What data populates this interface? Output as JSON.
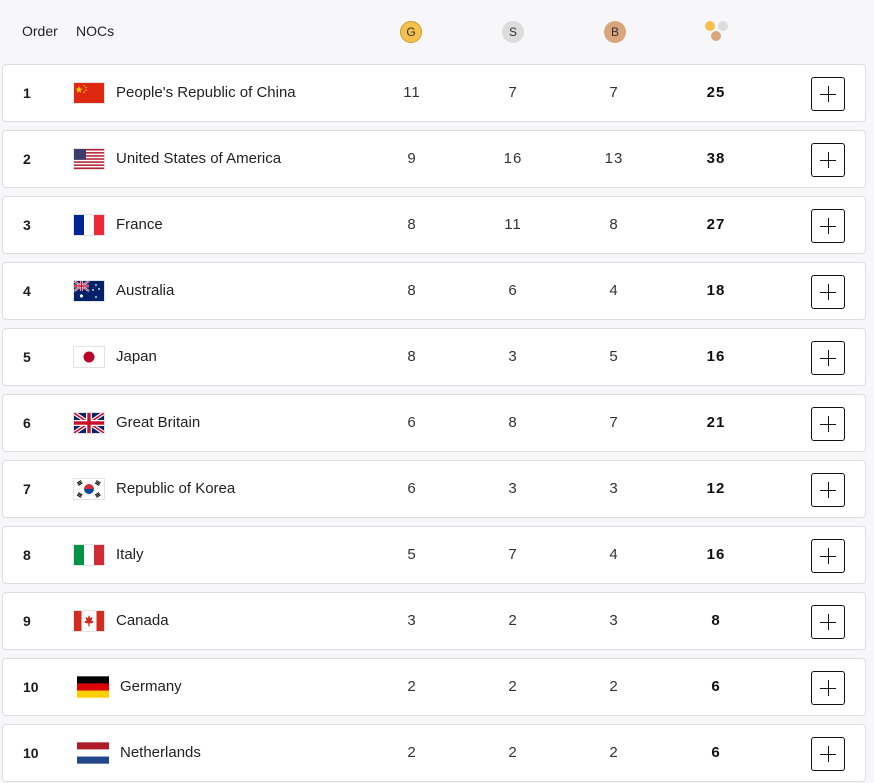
{
  "header": {
    "order_label": "Order",
    "nocs_label": "NOCs",
    "gold_badge": "G",
    "silver_badge": "S",
    "bronze_badge": "B",
    "total_icon": "medals-total-icon"
  },
  "colors": {
    "gold": "#f5c04e",
    "silver": "#dcdcdc",
    "bronze": "#d9a57a"
  },
  "rows": [
    {
      "rank": "1",
      "country": "People's Republic of China",
      "gold": "11",
      "silver": "7",
      "bronze": "7",
      "total": "25",
      "flag": "china-flag-icon"
    },
    {
      "rank": "2",
      "country": "United States of America",
      "gold": "9",
      "silver": "16",
      "bronze": "13",
      "total": "38",
      "flag": "usa-flag-icon"
    },
    {
      "rank": "3",
      "country": "France",
      "gold": "8",
      "silver": "11",
      "bronze": "8",
      "total": "27",
      "flag": "france-flag-icon"
    },
    {
      "rank": "4",
      "country": "Australia",
      "gold": "8",
      "silver": "6",
      "bronze": "4",
      "total": "18",
      "flag": "australia-flag-icon"
    },
    {
      "rank": "5",
      "country": "Japan",
      "gold": "8",
      "silver": "3",
      "bronze": "5",
      "total": "16",
      "flag": "japan-flag-icon"
    },
    {
      "rank": "6",
      "country": "Great Britain",
      "gold": "6",
      "silver": "8",
      "bronze": "7",
      "total": "21",
      "flag": "great-britain-flag-icon"
    },
    {
      "rank": "7",
      "country": "Republic of Korea",
      "gold": "6",
      "silver": "3",
      "bronze": "3",
      "total": "12",
      "flag": "korea-flag-icon"
    },
    {
      "rank": "8",
      "country": "Italy",
      "gold": "5",
      "silver": "7",
      "bronze": "4",
      "total": "16",
      "flag": "italy-flag-icon"
    },
    {
      "rank": "9",
      "country": "Canada",
      "gold": "3",
      "silver": "2",
      "bronze": "3",
      "total": "8",
      "flag": "canada-flag-icon"
    },
    {
      "rank": "10",
      "country": "Germany",
      "gold": "2",
      "silver": "2",
      "bronze": "2",
      "total": "6",
      "flag": "germany-flag-icon"
    },
    {
      "rank": "10",
      "country": "Netherlands",
      "gold": "2",
      "silver": "2",
      "bronze": "2",
      "total": "6",
      "flag": "netherlands-flag-icon"
    }
  ]
}
